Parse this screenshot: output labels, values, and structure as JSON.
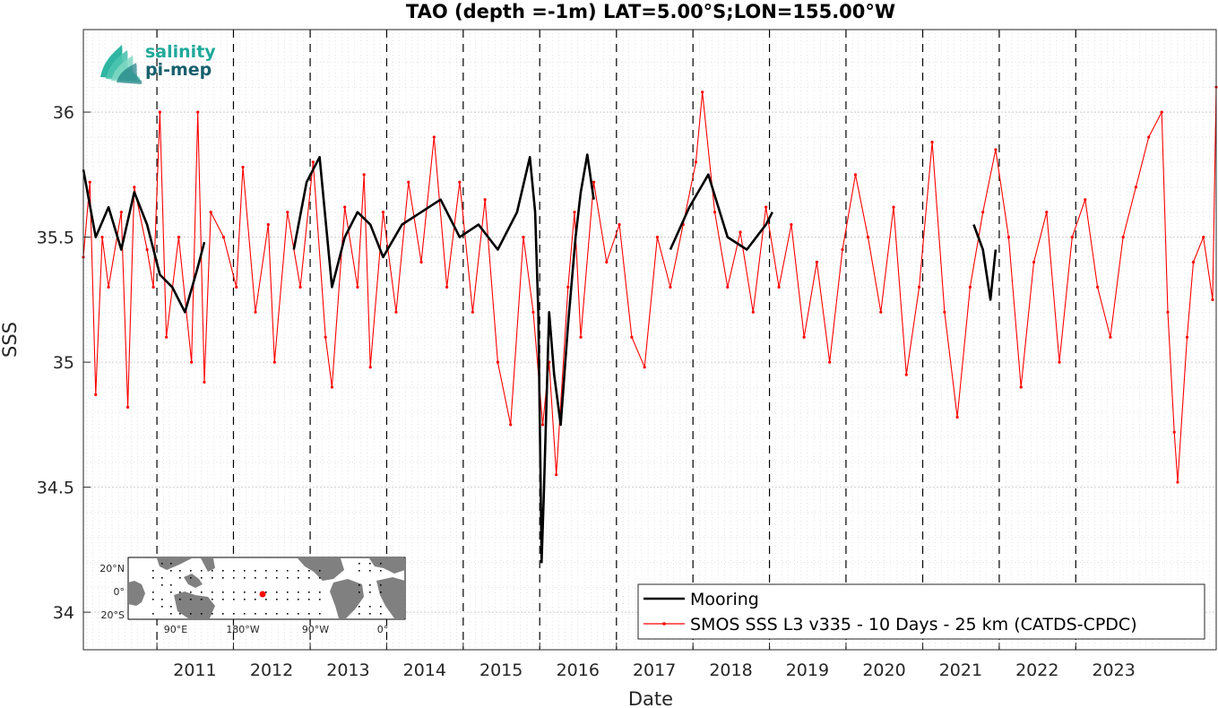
{
  "chart_data": {
    "type": "line",
    "title": "TAO (depth =-1m) LAT=5.00°S;LON=155.00°W",
    "xlabel": "Date",
    "ylabel": "SSS",
    "x_range": [
      "2010-01-15",
      "2024-11-01"
    ],
    "ylim": [
      33.85,
      36.33
    ],
    "y_ticks": [
      34,
      34.5,
      35,
      35.5,
      36
    ],
    "x_tick_labels": [
      "2011",
      "2012",
      "2013",
      "2014",
      "2015",
      "2016",
      "2017",
      "2018",
      "2019",
      "2020",
      "2021",
      "2022",
      "2023"
    ],
    "year_boundaries": [
      "2011-01-01",
      "2012-01-01",
      "2013-01-01",
      "2014-01-01",
      "2015-01-01",
      "2016-01-01",
      "2017-01-01",
      "2018-01-01",
      "2019-01-01",
      "2020-01-01",
      "2021-01-01",
      "2022-01-01",
      "2023-01-01"
    ],
    "grid": true,
    "legend_position": "bottom-right",
    "series": [
      {
        "name": "Mooring",
        "color": "#000000",
        "marker": "none",
        "points": [
          [
            "2010-01-15",
            35.77
          ],
          [
            "2010-03-15",
            35.5
          ],
          [
            "2010-05-15",
            35.62
          ],
          [
            "2010-07-15",
            35.45
          ],
          [
            "2010-09-15",
            35.68
          ],
          [
            "2010-11-15",
            35.55
          ],
          [
            "2011-01-15",
            35.35
          ],
          [
            "2011-03-15",
            35.3
          ],
          [
            "2011-05-15",
            35.2
          ],
          [
            "2011-07-15",
            35.38
          ],
          [
            "2011-08-15",
            35.48
          ],
          [
            "2012-10-15",
            35.45
          ],
          [
            "2012-12-15",
            35.72
          ],
          [
            "2013-02-15",
            35.82
          ],
          [
            "2013-04-15",
            35.3
          ],
          [
            "2013-06-15",
            35.5
          ],
          [
            "2013-08-15",
            35.6
          ],
          [
            "2013-10-15",
            35.55
          ],
          [
            "2013-12-15",
            35.42
          ],
          [
            "2014-03-15",
            35.55
          ],
          [
            "2014-06-15",
            35.6
          ],
          [
            "2014-09-15",
            35.65
          ],
          [
            "2014-12-15",
            35.5
          ],
          [
            "2015-03-15",
            35.55
          ],
          [
            "2015-06-15",
            35.45
          ],
          [
            "2015-09-15",
            35.6
          ],
          [
            "2015-11-15",
            35.82
          ],
          [
            "2015-12-10",
            35.6
          ],
          [
            "2015-12-25",
            35.2
          ],
          [
            "2016-01-05",
            34.55
          ],
          [
            "2016-01-10",
            34.2
          ],
          [
            "2016-01-20",
            34.45
          ],
          [
            "2016-02-15",
            35.2
          ],
          [
            "2016-03-10",
            34.95
          ],
          [
            "2016-04-10",
            34.75
          ],
          [
            "2016-05-15",
            35.15
          ],
          [
            "2016-06-20",
            35.5
          ],
          [
            "2016-07-15",
            35.68
          ],
          [
            "2016-08-15",
            35.83
          ],
          [
            "2016-09-15",
            35.65
          ],
          [
            "2017-09-15",
            35.45
          ],
          [
            "2017-12-15",
            35.62
          ],
          [
            "2018-03-15",
            35.75
          ],
          [
            "2018-06-15",
            35.5
          ],
          [
            "2018-09-15",
            35.45
          ],
          [
            "2018-12-15",
            35.55
          ],
          [
            "2019-01-15",
            35.6
          ],
          [
            "2021-09-01",
            35.55
          ],
          [
            "2021-10-15",
            35.45
          ],
          [
            "2021-11-20",
            35.25
          ],
          [
            "2021-12-15",
            35.45
          ]
        ]
      },
      {
        "name": "SMOS SSS L3 v335 - 10 Days - 25 km (CATDS-CPDC)",
        "color": "#ff0000",
        "marker": "dot",
        "points": [
          [
            "2010-01-15",
            35.42
          ],
          [
            "2010-02-15",
            35.72
          ],
          [
            "2010-03-15",
            34.87
          ],
          [
            "2010-04-15",
            35.5
          ],
          [
            "2010-05-15",
            35.3
          ],
          [
            "2010-07-15",
            35.6
          ],
          [
            "2010-08-15",
            34.82
          ],
          [
            "2010-09-15",
            35.7
          ],
          [
            "2010-11-15",
            35.45
          ],
          [
            "2010-12-15",
            35.3
          ],
          [
            "2011-01-15",
            36.0
          ],
          [
            "2011-02-15",
            35.1
          ],
          [
            "2011-04-15",
            35.5
          ],
          [
            "2011-06-15",
            35.0
          ],
          [
            "2011-07-15",
            36.0
          ],
          [
            "2011-08-15",
            34.92
          ],
          [
            "2011-09-15",
            35.6
          ],
          [
            "2011-11-15",
            35.5
          ],
          [
            "2012-01-15",
            35.3
          ],
          [
            "2012-02-15",
            35.78
          ],
          [
            "2012-04-15",
            35.2
          ],
          [
            "2012-06-15",
            35.55
          ],
          [
            "2012-07-15",
            35.0
          ],
          [
            "2012-09-15",
            35.6
          ],
          [
            "2012-11-15",
            35.3
          ],
          [
            "2013-01-15",
            35.8
          ],
          [
            "2013-03-15",
            35.1
          ],
          [
            "2013-04-15",
            34.9
          ],
          [
            "2013-06-15",
            35.62
          ],
          [
            "2013-08-15",
            35.3
          ],
          [
            "2013-09-15",
            35.75
          ],
          [
            "2013-10-15",
            34.98
          ],
          [
            "2013-12-15",
            35.6
          ],
          [
            "2014-02-15",
            35.2
          ],
          [
            "2014-04-15",
            35.72
          ],
          [
            "2014-06-15",
            35.4
          ],
          [
            "2014-08-15",
            35.9
          ],
          [
            "2014-10-15",
            35.3
          ],
          [
            "2014-12-15",
            35.72
          ],
          [
            "2015-02-15",
            35.2
          ],
          [
            "2015-04-15",
            35.65
          ],
          [
            "2015-06-15",
            35.0
          ],
          [
            "2015-08-15",
            34.75
          ],
          [
            "2015-10-15",
            35.5
          ],
          [
            "2015-12-01",
            35.2
          ],
          [
            "2016-01-15",
            34.75
          ],
          [
            "2016-02-15",
            35.0
          ],
          [
            "2016-03-20",
            34.55
          ],
          [
            "2016-05-15",
            35.3
          ],
          [
            "2016-06-15",
            35.6
          ],
          [
            "2016-07-15",
            35.1
          ],
          [
            "2016-09-15",
            35.72
          ],
          [
            "2016-11-15",
            35.4
          ],
          [
            "2017-01-15",
            35.55
          ],
          [
            "2017-03-15",
            35.1
          ],
          [
            "2017-05-15",
            34.98
          ],
          [
            "2017-07-15",
            35.5
          ],
          [
            "2017-09-15",
            35.3
          ],
          [
            "2017-11-15",
            35.55
          ],
          [
            "2018-01-15",
            35.8
          ],
          [
            "2018-02-15",
            36.08
          ],
          [
            "2018-04-15",
            35.6
          ],
          [
            "2018-06-15",
            35.3
          ],
          [
            "2018-08-15",
            35.52
          ],
          [
            "2018-10-15",
            35.2
          ],
          [
            "2018-12-15",
            35.62
          ],
          [
            "2019-02-15",
            35.3
          ],
          [
            "2019-04-15",
            35.55
          ],
          [
            "2019-06-15",
            35.1
          ],
          [
            "2019-08-15",
            35.4
          ],
          [
            "2019-10-15",
            35.0
          ],
          [
            "2019-12-15",
            35.45
          ],
          [
            "2020-02-15",
            35.75
          ],
          [
            "2020-04-15",
            35.5
          ],
          [
            "2020-06-15",
            35.2
          ],
          [
            "2020-08-15",
            35.62
          ],
          [
            "2020-10-15",
            34.95
          ],
          [
            "2020-12-15",
            35.3
          ],
          [
            "2021-02-15",
            35.88
          ],
          [
            "2021-04-15",
            35.2
          ],
          [
            "2021-06-15",
            34.78
          ],
          [
            "2021-08-15",
            35.3
          ],
          [
            "2021-10-15",
            35.6
          ],
          [
            "2021-12-15",
            35.85
          ],
          [
            "2022-02-15",
            35.5
          ],
          [
            "2022-04-15",
            34.9
          ],
          [
            "2022-06-15",
            35.4
          ],
          [
            "2022-08-15",
            35.6
          ],
          [
            "2022-10-15",
            35.0
          ],
          [
            "2022-12-15",
            35.5
          ],
          [
            "2023-02-15",
            35.65
          ],
          [
            "2023-04-15",
            35.3
          ],
          [
            "2023-06-15",
            35.1
          ],
          [
            "2023-08-15",
            35.5
          ],
          [
            "2023-10-15",
            35.7
          ],
          [
            "2023-12-15",
            35.9
          ],
          [
            "2024-02-15",
            36.0
          ],
          [
            "2024-03-15",
            35.2
          ],
          [
            "2024-04-15",
            34.72
          ],
          [
            "2024-05-01",
            34.52
          ],
          [
            "2024-06-15",
            35.1
          ],
          [
            "2024-07-15",
            35.4
          ],
          [
            "2024-09-01",
            35.5
          ],
          [
            "2024-10-15",
            35.25
          ],
          [
            "2024-11-01",
            36.1
          ]
        ]
      }
    ]
  },
  "inset_map": {
    "lat_labels": [
      "20°N",
      "0°",
      "20°S"
    ],
    "lon_labels": [
      "90°E",
      "180°W",
      "90°W",
      "0°"
    ],
    "ocean_color": "#ffffff",
    "land_color": "#808080",
    "marker_color": "#ff0000"
  },
  "logo": {
    "line1": "salinity",
    "line2": "pi-mep",
    "color_top": "#1fa99a",
    "color_bottom": "#17606e"
  }
}
